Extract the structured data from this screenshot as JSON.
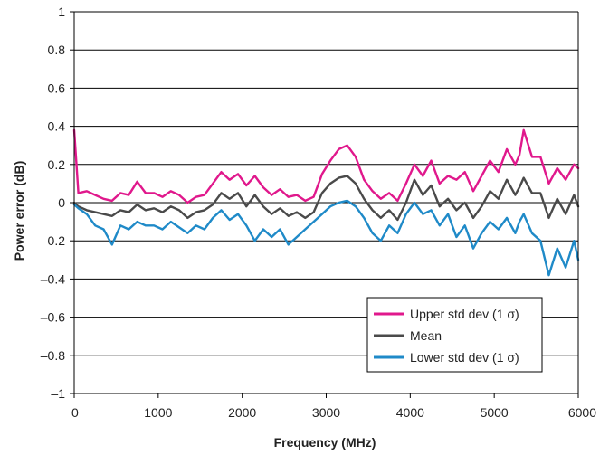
{
  "chart_data": {
    "type": "line",
    "title": "",
    "xlabel": "Frequency (MHz)",
    "ylabel": "Power error (dB)",
    "xlim": [
      0,
      6000
    ],
    "ylim": [
      -1,
      1
    ],
    "x_ticks": [
      0,
      1000,
      2000,
      3000,
      4000,
      5000,
      6000
    ],
    "x_tick_labels": [
      "0",
      "1000",
      "2000",
      "3000",
      "4000",
      "5000",
      "6000"
    ],
    "y_ticks": [
      1,
      0.8,
      0.6,
      0.4,
      0.2,
      0,
      -0.2,
      -0.4,
      -0.6,
      -0.8,
      -1
    ],
    "y_tick_labels": [
      "1",
      "0.8",
      "0.6",
      "0.4",
      "0.2",
      "0",
      "–0.2",
      "–0.4",
      "–0.6",
      "–0.8",
      "–1"
    ],
    "grid": "horizontal",
    "legend_position": "bottom-right",
    "x": [
      0,
      50,
      150,
      250,
      350,
      450,
      550,
      650,
      750,
      850,
      950,
      1050,
      1150,
      1250,
      1350,
      1450,
      1550,
      1650,
      1750,
      1850,
      1950,
      2050,
      2150,
      2250,
      2350,
      2450,
      2550,
      2650,
      2750,
      2850,
      2950,
      3050,
      3150,
      3250,
      3350,
      3450,
      3550,
      3650,
      3750,
      3850,
      3950,
      4050,
      4150,
      4250,
      4350,
      4450,
      4550,
      4650,
      4750,
      4850,
      4950,
      5050,
      5150,
      5250,
      5300,
      5350,
      5450,
      5550,
      5650,
      5750,
      5850,
      5950,
      6000
    ],
    "series": [
      {
        "name": "Upper std dev (1 σ)",
        "color": "#e0188c",
        "values": [
          0.38,
          0.05,
          0.06,
          0.04,
          0.02,
          0.01,
          0.05,
          0.04,
          0.11,
          0.05,
          0.05,
          0.03,
          0.06,
          0.04,
          0.0,
          0.03,
          0.04,
          0.1,
          0.16,
          0.12,
          0.15,
          0.09,
          0.14,
          0.08,
          0.04,
          0.07,
          0.03,
          0.04,
          0.01,
          0.03,
          0.15,
          0.22,
          0.28,
          0.3,
          0.24,
          0.12,
          0.06,
          0.02,
          0.05,
          0.01,
          0.1,
          0.2,
          0.14,
          0.22,
          0.1,
          0.14,
          0.12,
          0.16,
          0.06,
          0.14,
          0.22,
          0.16,
          0.28,
          0.2,
          0.25,
          0.38,
          0.24,
          0.24,
          0.1,
          0.18,
          0.12,
          0.2,
          0.18
        ]
      },
      {
        "name": "Mean",
        "color": "#4a4a4a",
        "values": [
          0.0,
          -0.02,
          -0.04,
          -0.05,
          -0.06,
          -0.07,
          -0.04,
          -0.05,
          -0.01,
          -0.04,
          -0.03,
          -0.05,
          -0.02,
          -0.04,
          -0.08,
          -0.05,
          -0.04,
          -0.01,
          0.05,
          0.02,
          0.05,
          -0.02,
          0.04,
          -0.02,
          -0.06,
          -0.03,
          -0.07,
          -0.05,
          -0.08,
          -0.05,
          0.05,
          0.1,
          0.13,
          0.14,
          0.1,
          0.02,
          -0.04,
          -0.08,
          -0.04,
          -0.09,
          0.0,
          0.12,
          0.04,
          0.09,
          -0.02,
          0.02,
          -0.04,
          0.0,
          -0.08,
          -0.02,
          0.06,
          0.02,
          0.12,
          0.04,
          0.08,
          0.13,
          0.05,
          0.05,
          -0.08,
          0.02,
          -0.06,
          0.04,
          -0.02
        ]
      },
      {
        "name": "Lower std dev (1 σ)",
        "color": "#1f8ac8",
        "values": [
          -0.01,
          -0.03,
          -0.06,
          -0.12,
          -0.14,
          -0.22,
          -0.12,
          -0.14,
          -0.1,
          -0.12,
          -0.12,
          -0.14,
          -0.1,
          -0.13,
          -0.16,
          -0.12,
          -0.14,
          -0.08,
          -0.04,
          -0.09,
          -0.06,
          -0.12,
          -0.2,
          -0.14,
          -0.18,
          -0.14,
          -0.22,
          -0.18,
          -0.14,
          -0.1,
          -0.06,
          -0.02,
          0.0,
          0.01,
          -0.02,
          -0.08,
          -0.16,
          -0.2,
          -0.12,
          -0.16,
          -0.06,
          0.0,
          -0.06,
          -0.04,
          -0.12,
          -0.06,
          -0.18,
          -0.12,
          -0.24,
          -0.16,
          -0.1,
          -0.14,
          -0.08,
          -0.16,
          -0.1,
          -0.06,
          -0.16,
          -0.2,
          -0.38,
          -0.24,
          -0.34,
          -0.2,
          -0.3
        ]
      }
    ]
  }
}
